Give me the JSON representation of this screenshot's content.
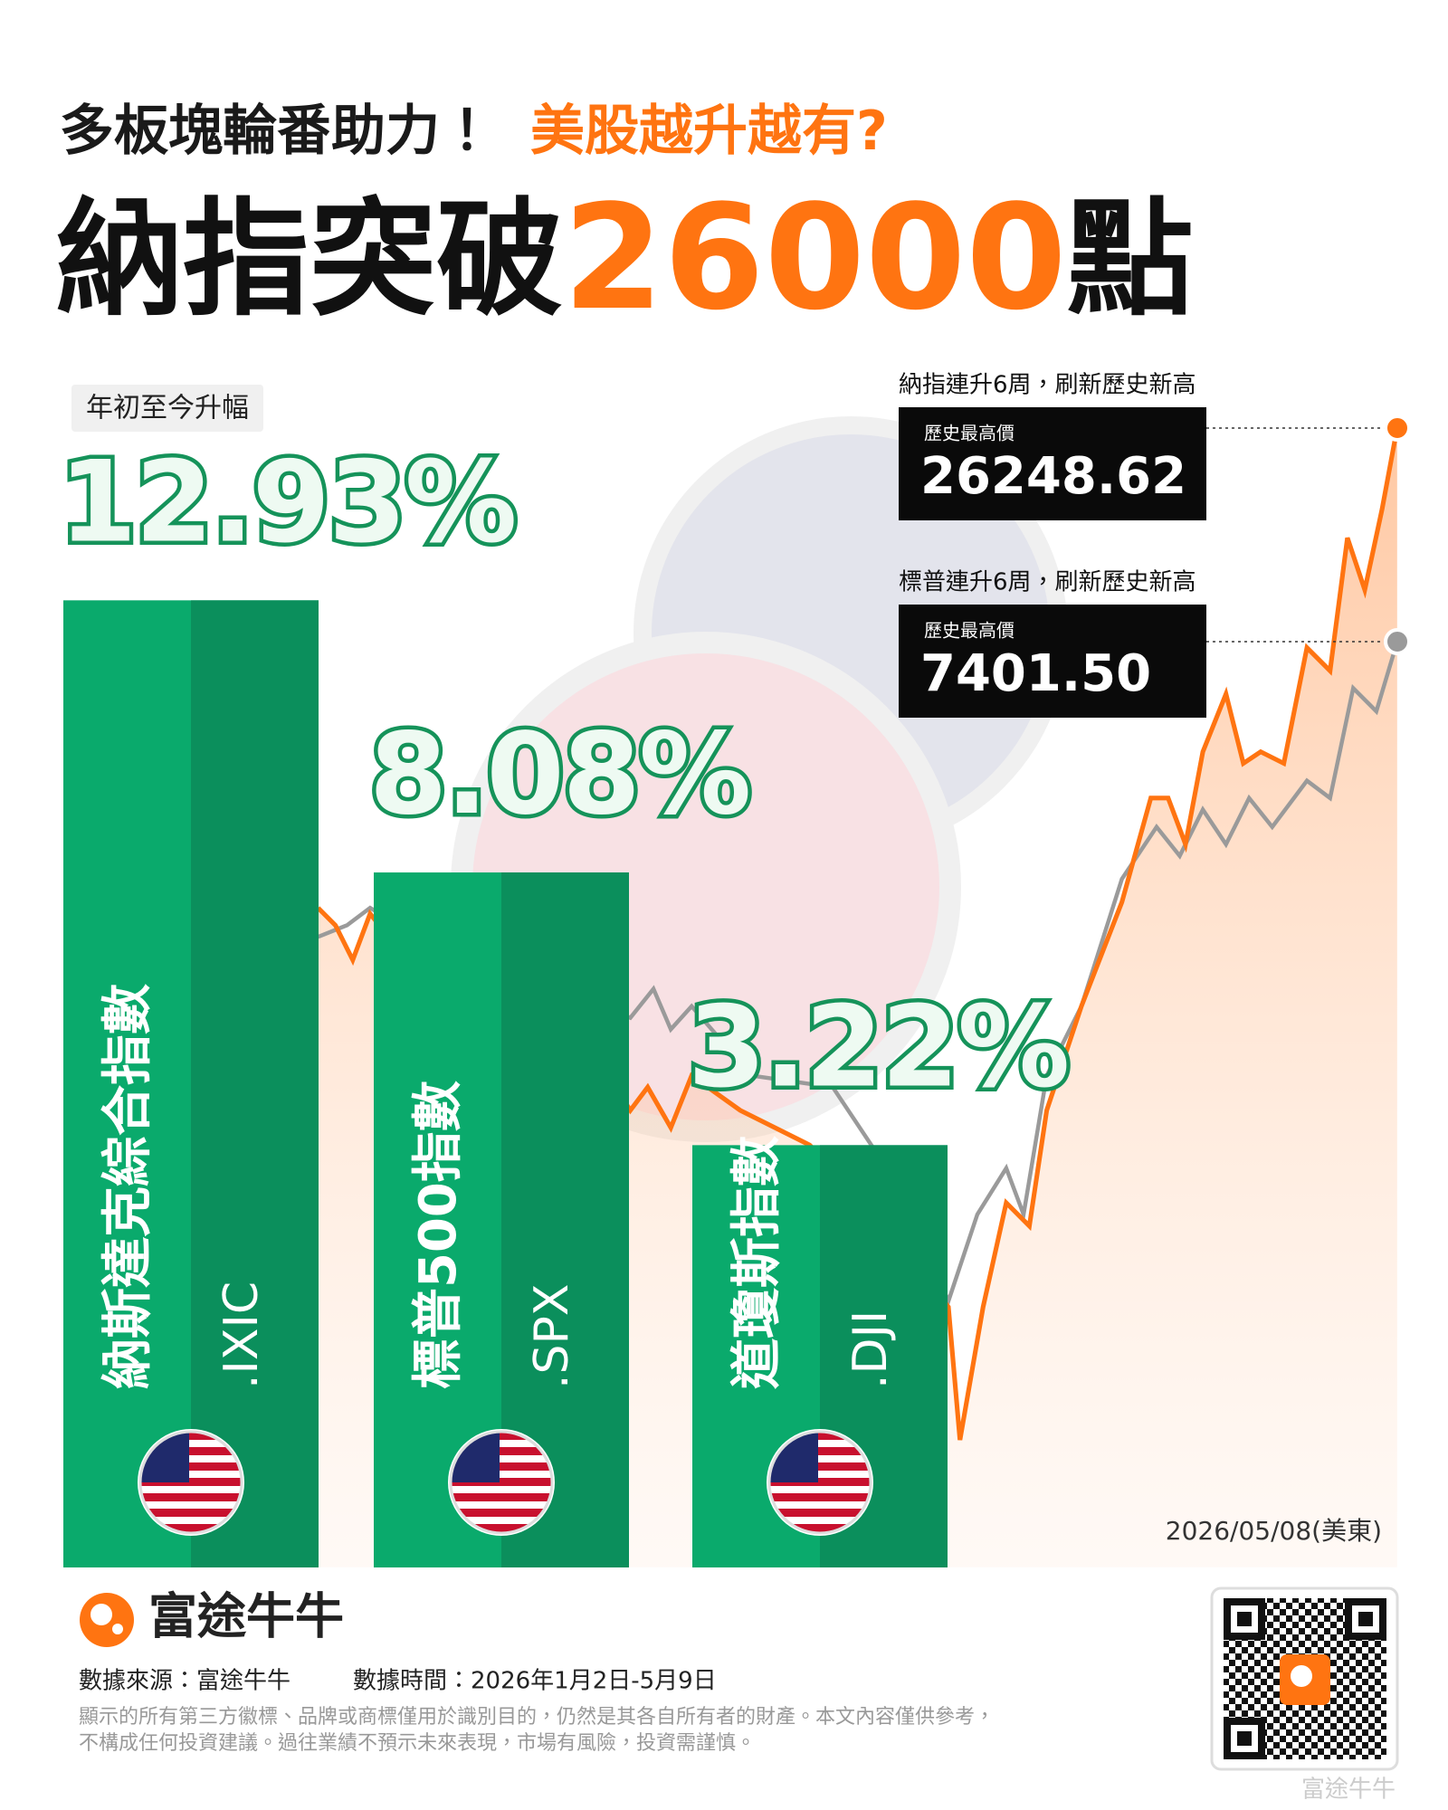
{
  "header": {
    "line1": "多板塊輪番助力！",
    "line1_highlight": "美股越升越有?",
    "line2_a": "納指突破",
    "line2_highlight": "26000",
    "line2_b": "點"
  },
  "chart_data": {
    "type": "bar",
    "label": "年初至今升幅",
    "categories": [
      "納斯達克綜合指數",
      "標普500指數",
      "道瓊斯指數"
    ],
    "tickers": [
      ".IXIC",
      ".SPX",
      ".DJI"
    ],
    "values": [
      12.93,
      8.08,
      3.22
    ],
    "value_labels": [
      "12.93%",
      "8.08%",
      "3.22%"
    ],
    "color": "#0aaa6c",
    "shade_color": "#0b8f5c"
  },
  "annotations": [
    {
      "caption": "納指連升6周，刷新歷史新高",
      "label": "歷史最高價",
      "value": "26248.62",
      "color": "#ff7411"
    },
    {
      "caption": "標普連升6周，刷新歷史新高",
      "label": "歷史最高價",
      "value": "7401.50",
      "color": "#9a9a9a"
    }
  ],
  "date": "2026/05/08(美東)",
  "footer": {
    "brand": "富途牛牛",
    "source": "數據來源：富途牛牛",
    "period": "數據時間：2026年1月2日-5月9日",
    "disclaimer": [
      "顯示的所有第三方徽標、品牌或商標僅用於識別目的，仍然是其各自所有者的財產。本文內容僅供參考，",
      "不構成任何投資建議。過往業績不預示未來表現，市場有風險，投資需謹慎。"
    ],
    "watermark": "富途牛牛"
  }
}
